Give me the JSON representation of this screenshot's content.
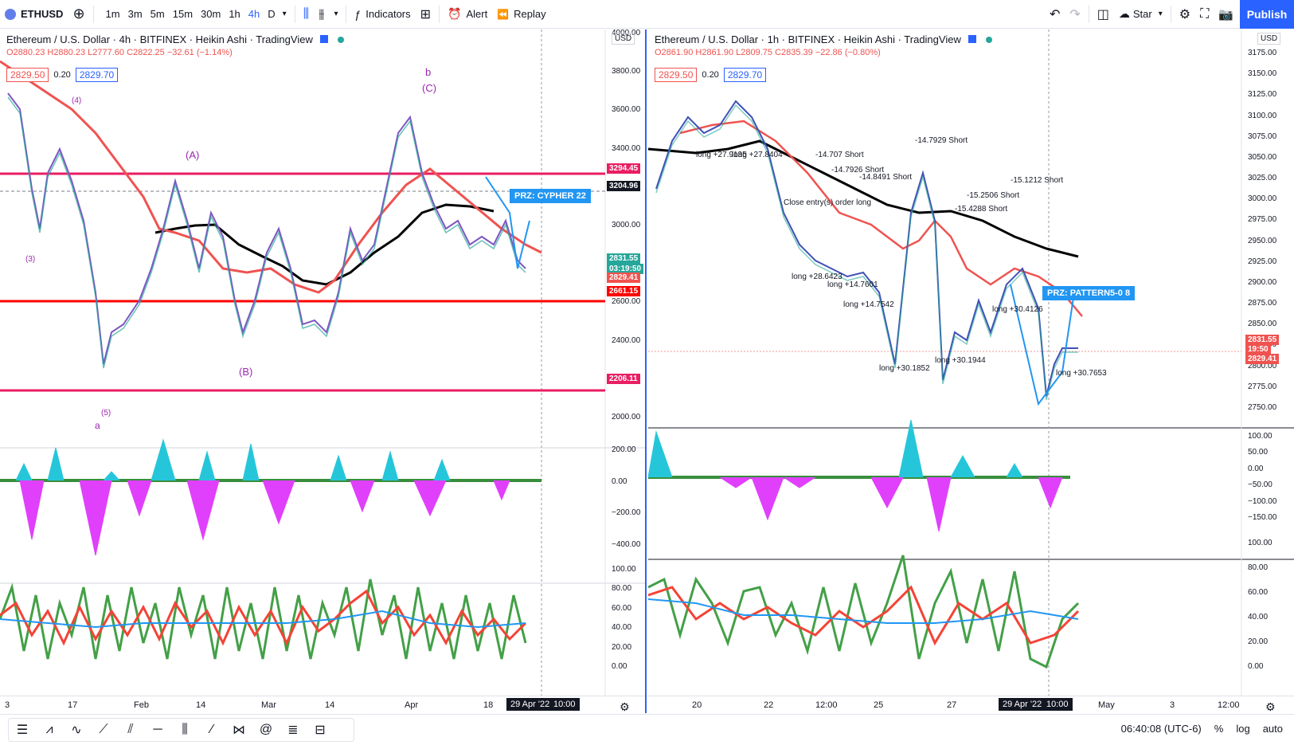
{
  "toolbar": {
    "symbol": "ETHUSD",
    "timeframes": [
      "1m",
      "3m",
      "5m",
      "15m",
      "30m",
      "1h",
      "4h",
      "D"
    ],
    "active_tf": "4h",
    "indicators_label": "Indicators",
    "alert_label": "Alert",
    "replay_label": "Replay",
    "layout_label": "Star",
    "publish_label": "Publish"
  },
  "left_chart": {
    "title": "Ethereum / U.S. Dollar · 4h · BITFINEX · Heikin Ashi · TradingView",
    "ohlc": "O2880.23 H2880.23 L2777.60 C2822.25 −32.61 (−1.14%)",
    "bid": "2829.50",
    "spread": "0.20",
    "ask": "2829.70",
    "currency": "USD",
    "price_axis": [
      "4000.00",
      "3800.00",
      "3600.00",
      "3400.00",
      "3200.00",
      "3000.00",
      "2800.00",
      "2600.00",
      "2400.00",
      "2200.00",
      "2000.00"
    ],
    "price_tags": [
      {
        "label": "3294.45",
        "color": "#e91e63"
      },
      {
        "label": "3204.96",
        "color": "#131722"
      },
      {
        "label": "2831.55",
        "color": "#26a69a"
      },
      {
        "label": "03:19:50",
        "color": "#26a69a"
      },
      {
        "label": "2829.41",
        "color": "#ef5350"
      },
      {
        "label": "2661.15",
        "color": "#ff0000"
      },
      {
        "label": "2206.11",
        "color": "#e91e63"
      }
    ],
    "osc1_axis": [
      "200.00",
      "0.00",
      "−200.00",
      "−400.00"
    ],
    "osc2_axis": [
      "100.00",
      "80.00",
      "60.00",
      "40.00",
      "20.00",
      "0.00"
    ],
    "time_axis": [
      "3",
      "17",
      "Feb",
      "14",
      "Mar",
      "14",
      "Apr",
      "18"
    ],
    "date_box": "29 Apr '22",
    "time_box": "10:00",
    "prz_label": "PRZ: CYPHER 22",
    "wave_labels": [
      "(4)",
      "(3)",
      "(5)",
      "a",
      "(A)",
      "(B)",
      "b",
      "(C)"
    ]
  },
  "right_chart": {
    "title": "Ethereum / U.S. Dollar · 1h · BITFINEX · Heikin Ashi · TradingView",
    "ohlc": "O2861.90 H2861.90 L2809.75 C2835.39 −22.86 (−0.80%)",
    "bid": "2829.50",
    "spread": "0.20",
    "ask": "2829.70",
    "currency": "USD",
    "price_axis": [
      "3175.00",
      "3150.00",
      "3125.00",
      "3100.00",
      "3075.00",
      "3050.00",
      "3025.00",
      "3000.00",
      "2975.00",
      "2950.00",
      "2925.00",
      "2900.00",
      "2875.00",
      "2850.00",
      "2825.00",
      "2800.00",
      "2775.00",
      "2750.00"
    ],
    "price_tags": [
      {
        "label": "2831.55",
        "color": "#ef5350"
      },
      {
        "label": "19:50",
        "color": "#ef5350"
      },
      {
        "label": "2829.41",
        "color": "#ef5350"
      }
    ],
    "osc1_axis": [
      "100.00",
      "50.00",
      "0.00",
      "−50.00",
      "−100.00",
      "−150.00"
    ],
    "osc2_axis": [
      "100.00",
      "80.00",
      "60.00",
      "40.00",
      "20.00",
      "0.00"
    ],
    "time_axis": [
      "20",
      "22",
      "12:00",
      "25",
      "27",
      "May",
      "3",
      "12:00"
    ],
    "date_box": "29 Apr '22",
    "time_box": "10:00",
    "prz_label": "PRZ: PATTERN5-0 8",
    "annotations": [
      "-14.707 Short",
      "-14.7926 Short",
      "-14.8491 Short",
      "-14.7929 Short",
      "-15.1212 Short",
      "-15.2506 Short",
      "-15.4288 Short",
      "long +27.9135",
      "long +27.8404",
      "long +28.6423",
      "long +14.7601",
      "long +14.7542",
      "long +30.1852",
      "long +30.1944",
      "long +30.4126",
      "long +30.7653",
      "Close entry(s) order long",
      "PRZ: PATTERN5-0 8"
    ]
  },
  "bottombar": {
    "clock": "06:40:08 (UTC-6)",
    "pct_label": "%",
    "log_label": "log",
    "auto_label": "auto"
  }
}
